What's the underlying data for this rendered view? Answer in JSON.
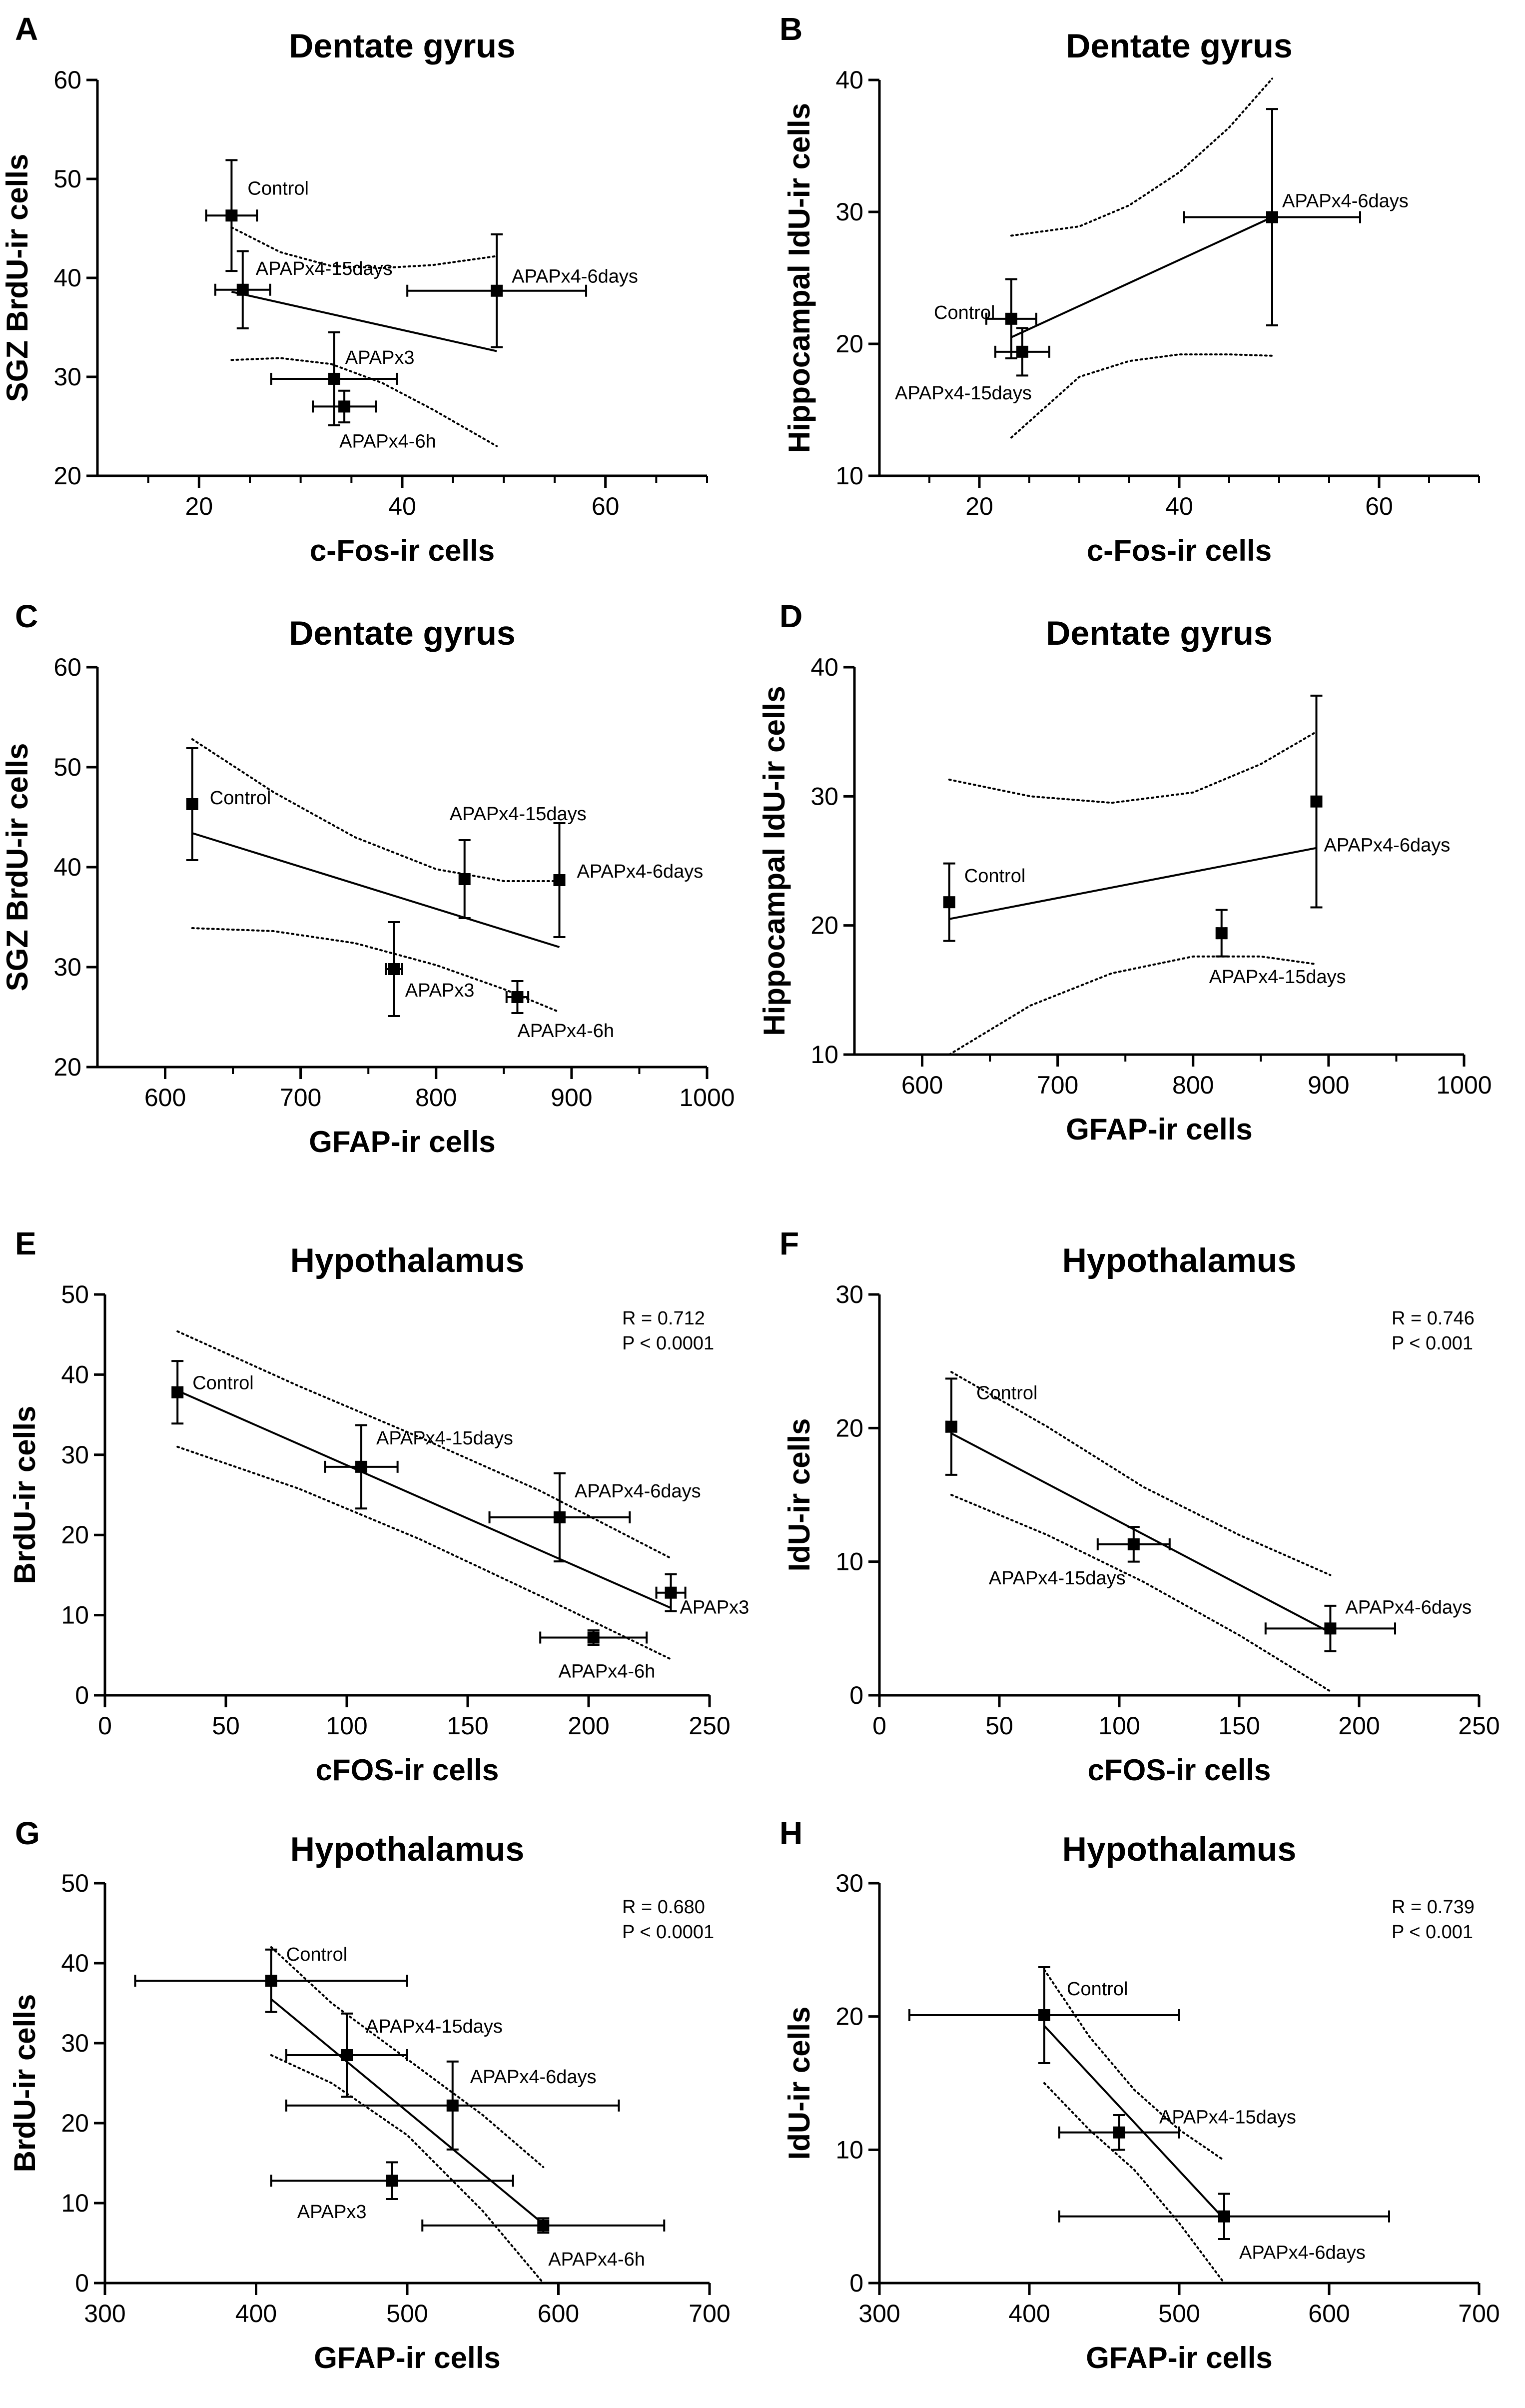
{
  "chart_data": [
    {
      "panel": "A",
      "type": "scatter",
      "title": "Dentate gyrus",
      "xlabel": "c-Fos-ir cells",
      "ylabel": "SGZ BrdU-ir cells",
      "xlim": [
        10,
        70
      ],
      "ylim": [
        20,
        60
      ],
      "xticks": [
        20,
        40,
        60
      ],
      "yticks": [
        20,
        30,
        40,
        50,
        60
      ],
      "x_minor_step": 5,
      "stats": [],
      "points": [
        {
          "label": "Control",
          "x": 23.2,
          "y": 46.3,
          "xerr": 2.5,
          "yerr": 5.6
        },
        {
          "label": "APAPx4-15days",
          "x": 24.3,
          "y": 38.8,
          "xerr": 2.7,
          "yerr": 3.9
        },
        {
          "label": "APAPx4-6days",
          "x": 49.3,
          "y": 38.7,
          "xerr": 8.8,
          "yerr": 5.7
        },
        {
          "label": "APAPx3",
          "x": 33.3,
          "y": 29.8,
          "xerr": 6.2,
          "yerr": 4.7
        },
        {
          "label": "APAPx4-6h",
          "x": 34.3,
          "y": 27.0,
          "xerr": 3.1,
          "yerr": 1.6
        }
      ],
      "fit": {
        "x": [
          23.2,
          49.3
        ],
        "y": [
          38.6,
          32.6
        ]
      },
      "ci_upper": {
        "x": [
          23.2,
          28,
          33,
          38,
          43,
          49.3
        ],
        "y": [
          45.1,
          42.6,
          41.2,
          41.0,
          41.3,
          42.2
        ]
      },
      "ci_lower": {
        "x": [
          23.2,
          28,
          33,
          38,
          43,
          49.3
        ],
        "y": [
          31.7,
          31.9,
          31.3,
          29.4,
          26.7,
          23.0
        ]
      }
    },
    {
      "panel": "B",
      "type": "scatter",
      "title": "Dentate gyrus",
      "xlabel": "c-Fos-ir cells",
      "ylabel": "Hippocampal IdU-ir cells",
      "xlim": [
        10,
        70
      ],
      "ylim": [
        10,
        40
      ],
      "xticks": [
        20,
        40,
        60
      ],
      "yticks": [
        10,
        20,
        30,
        40
      ],
      "x_minor_step": 5,
      "stats": [],
      "points": [
        {
          "label": "Control",
          "x": 23.2,
          "y": 21.9,
          "xerr": 2.5,
          "yerr": 3.0
        },
        {
          "label": "APAPx4-15days",
          "x": 24.3,
          "y": 19.4,
          "xerr": 2.7,
          "yerr": 1.8
        },
        {
          "label": "APAPx4-6days",
          "x": 49.3,
          "y": 29.6,
          "xerr": 8.8,
          "yerr": 8.2
        }
      ],
      "fit": {
        "x": [
          23.2,
          49.3
        ],
        "y": [
          20.5,
          29.6
        ]
      },
      "ci_upper": {
        "x": [
          23.2,
          30,
          35,
          40,
          45,
          49.3
        ],
        "y": [
          28.2,
          28.9,
          30.5,
          33.0,
          36.4,
          40.1
        ]
      },
      "ci_lower": {
        "x": [
          23.2,
          30,
          35,
          40,
          45,
          49.3
        ],
        "y": [
          12.9,
          17.5,
          18.7,
          19.2,
          19.2,
          19.1
        ]
      }
    },
    {
      "panel": "C",
      "type": "scatter",
      "title": "Dentate gyrus",
      "xlabel": "GFAP-ir cells",
      "ylabel": "SGZ BrdU-ir cells",
      "xlim": [
        550,
        1000
      ],
      "ylim": [
        20,
        60
      ],
      "xticks": [
        600,
        700,
        800,
        900,
        1000
      ],
      "yticks": [
        20,
        30,
        40,
        50,
        60
      ],
      "x_minor_step": 50,
      "stats": [],
      "points": [
        {
          "label": "Control",
          "x": 620,
          "y": 46.3,
          "xerr": 0,
          "yerr": 5.6
        },
        {
          "label": "APAPx4-15days",
          "x": 821,
          "y": 38.8,
          "xerr": 3,
          "yerr": 3.9
        },
        {
          "label": "APAPx4-6days",
          "x": 891,
          "y": 38.7,
          "xerr": 0,
          "yerr": 5.7
        },
        {
          "label": "APAPx3",
          "x": 769,
          "y": 29.8,
          "xerr": 6,
          "yerr": 4.7
        },
        {
          "label": "APAPx4-6h",
          "x": 860,
          "y": 27.0,
          "xerr": 8,
          "yerr": 1.6
        }
      ],
      "fit": {
        "x": [
          620,
          891
        ],
        "y": [
          43.4,
          32.0
        ]
      },
      "ci_upper": {
        "x": [
          620,
          680,
          740,
          800,
          850,
          891
        ],
        "y": [
          52.8,
          47.5,
          43.0,
          39.8,
          38.6,
          38.6
        ]
      },
      "ci_lower": {
        "x": [
          620,
          680,
          740,
          800,
          850,
          891
        ],
        "y": [
          33.9,
          33.6,
          32.4,
          30.2,
          27.8,
          25.5
        ]
      }
    },
    {
      "panel": "D",
      "type": "scatter",
      "title": "Dentate gyrus",
      "xlabel": "GFAP-ir cells",
      "ylabel": "Hippocampal IdU-ir cells",
      "xlim": [
        550,
        1000
      ],
      "ylim": [
        10,
        40
      ],
      "xticks": [
        600,
        700,
        800,
        900,
        1000
      ],
      "yticks": [
        10,
        20,
        30,
        40
      ],
      "x_minor_step": 50,
      "stats": [],
      "points": [
        {
          "label": "Control",
          "x": 620,
          "y": 21.8,
          "xerr": 0,
          "yerr": 3.0
        },
        {
          "label": "APAPx4-15days",
          "x": 821,
          "y": 19.4,
          "xerr": 3,
          "yerr": 1.8
        },
        {
          "label": "APAPx4-6days",
          "x": 891,
          "y": 29.6,
          "xerr": 0,
          "yerr": 8.2
        }
      ],
      "fit": {
        "x": [
          620,
          891
        ],
        "y": [
          20.5,
          26.0
        ]
      },
      "ci_upper": {
        "x": [
          620,
          680,
          740,
          800,
          850,
          891
        ],
        "y": [
          31.3,
          30.0,
          29.5,
          30.3,
          32.5,
          35.0
        ]
      },
      "ci_lower": {
        "x": [
          620,
          680,
          740,
          800,
          850,
          891
        ],
        "y": [
          10.0,
          13.8,
          16.3,
          17.6,
          17.6,
          17.0
        ]
      }
    },
    {
      "panel": "E",
      "type": "scatter",
      "title": "Hypothalamus",
      "xlabel": "cFOS-ir  cells",
      "ylabel": "BrdU-ir cells",
      "xlim": [
        0,
        250
      ],
      "ylim": [
        0,
        50
      ],
      "xticks": [
        0,
        50,
        100,
        150,
        200,
        250
      ],
      "yticks": [
        0,
        10,
        20,
        30,
        40,
        50
      ],
      "x_minor_step": null,
      "stats": [
        "R = 0.712",
        "P < 0.0001"
      ],
      "points": [
        {
          "label": "Control",
          "x": 30,
          "y": 37.8,
          "xerr": 2,
          "yerr": 3.9
        },
        {
          "label": "APAPx4-15days",
          "x": 106,
          "y": 28.5,
          "xerr": 15,
          "yerr": 5.2
        },
        {
          "label": "APAPx4-6days",
          "x": 188,
          "y": 22.2,
          "xerr": 29,
          "yerr": 5.5
        },
        {
          "label": "APAPx3",
          "x": 234,
          "y": 12.8,
          "xerr": 6,
          "yerr": 2.3
        },
        {
          "label": "APAPx4-6h",
          "x": 202,
          "y": 7.2,
          "xerr": 22,
          "yerr": 0.9
        }
      ],
      "fit": {
        "x": [
          30,
          234
        ],
        "y": [
          38.0,
          10.9
        ]
      },
      "ci_upper": {
        "x": [
          30,
          80,
          130,
          180,
          234
        ],
        "y": [
          45.4,
          38.6,
          32.2,
          25.5,
          17.1
        ]
      },
      "ci_lower": {
        "x": [
          30,
          80,
          130,
          180,
          234
        ],
        "y": [
          31.0,
          25.8,
          19.5,
          12.4,
          4.5
        ]
      }
    },
    {
      "panel": "F",
      "type": "scatter",
      "title": "Hypothalamus",
      "xlabel": "cFOS-ir  cells",
      "ylabel": "IdU-ir cells",
      "xlim": [
        0,
        250
      ],
      "ylim": [
        0,
        30
      ],
      "xticks": [
        0,
        50,
        100,
        150,
        200,
        250
      ],
      "yticks": [
        0,
        10,
        20,
        30
      ],
      "x_minor_step": null,
      "stats": [
        "R = 0.746",
        "P < 0.001"
      ],
      "points": [
        {
          "label": "Control",
          "x": 30,
          "y": 20.1,
          "xerr": 2,
          "yerr": 3.6
        },
        {
          "label": "APAPx4-15days",
          "x": 106,
          "y": 11.3,
          "xerr": 15,
          "yerr": 1.3
        },
        {
          "label": "APAPx4-6days",
          "x": 188,
          "y": 5.0,
          "xerr": 27,
          "yerr": 1.7
        }
      ],
      "fit": {
        "x": [
          30,
          188
        ],
        "y": [
          19.6,
          4.7
        ]
      },
      "ci_upper": {
        "x": [
          30,
          70,
          110,
          150,
          188
        ],
        "y": [
          24.2,
          20.1,
          15.6,
          12.0,
          9.0
        ]
      },
      "ci_lower": {
        "x": [
          30,
          70,
          110,
          150,
          188
        ],
        "y": [
          15.0,
          12.0,
          8.5,
          4.5,
          0.3
        ]
      }
    },
    {
      "panel": "G",
      "type": "scatter",
      "title": "Hypothalamus",
      "xlabel": "GFAP-ir  cells",
      "ylabel": "BrdU-ir cells",
      "xlim": [
        300,
        700
      ],
      "ylim": [
        0,
        50
      ],
      "xticks": [
        300,
        400,
        500,
        600,
        700
      ],
      "yticks": [
        0,
        10,
        20,
        30,
        40,
        50
      ],
      "x_minor_step": null,
      "stats": [
        "R = 0.680",
        "P < 0.0001"
      ],
      "points": [
        {
          "label": "Control",
          "x": 410,
          "y": 37.8,
          "xerr": 90,
          "yerr": 3.9
        },
        {
          "label": "APAPx4-15days",
          "x": 460,
          "y": 28.5,
          "xerr": 40,
          "yerr": 5.2
        },
        {
          "label": "APAPx4-6days",
          "x": 530,
          "y": 22.2,
          "xerr": 110,
          "yerr": 5.5
        },
        {
          "label": "APAPx3",
          "x": 490,
          "y": 12.8,
          "xerr": 80,
          "yerr": 2.3
        },
        {
          "label": "APAPx4-6h",
          "x": 590,
          "y": 7.2,
          "xerr": 80,
          "yerr": 0.9
        }
      ],
      "fit": {
        "x": [
          410,
          590
        ],
        "y": [
          35.5,
          7.4
        ]
      },
      "ci_upper": {
        "x": [
          410,
          450,
          500,
          550,
          590
        ],
        "y": [
          42.0,
          35.0,
          28.0,
          21.0,
          14.5
        ]
      },
      "ci_lower": {
        "x": [
          410,
          450,
          500,
          550,
          590
        ],
        "y": [
          28.5,
          25.0,
          18.5,
          9.0,
          0.0
        ]
      }
    },
    {
      "panel": "H",
      "type": "scatter",
      "title": "Hypothalamus",
      "xlabel": "GFAP-ir  cells",
      "ylabel": "IdU-ir cells",
      "xlim": [
        300,
        700
      ],
      "ylim": [
        0,
        30
      ],
      "xticks": [
        300,
        400,
        500,
        600,
        700
      ],
      "yticks": [
        0,
        10,
        20,
        30
      ],
      "x_minor_step": null,
      "stats": [
        "R = 0.739",
        "P < 0.001"
      ],
      "points": [
        {
          "label": "Control",
          "x": 410,
          "y": 20.1,
          "xerr": 90,
          "yerr": 3.6
        },
        {
          "label": "APAPx4-15days",
          "x": 460,
          "y": 11.3,
          "xerr": 40,
          "yerr": 1.3
        },
        {
          "label": "APAPx4-6days",
          "x": 530,
          "y": 5.0,
          "xerr": 110,
          "yerr": 1.7
        }
      ],
      "fit": {
        "x": [
          410,
          530
        ],
        "y": [
          19.3,
          4.8
        ]
      },
      "ci_upper": {
        "x": [
          410,
          440,
          470,
          500,
          530
        ],
        "y": [
          23.5,
          18.5,
          14.5,
          11.5,
          9.2
        ]
      },
      "ci_lower": {
        "x": [
          410,
          440,
          470,
          500,
          530
        ],
        "y": [
          15.0,
          11.5,
          8.5,
          4.5,
          0.0
        ]
      }
    }
  ]
}
